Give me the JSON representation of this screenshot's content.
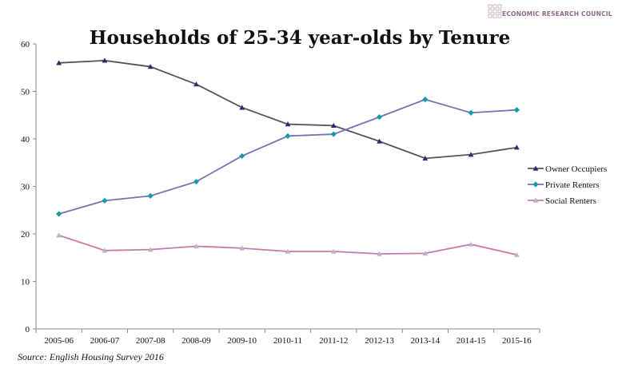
{
  "logo": {
    "text": "ECONOMIC RESEARCH COUNCIL"
  },
  "source": "Source: English Housing Survey 2016",
  "chart_data": {
    "type": "line",
    "title": "Households of 25-34 year-olds by Tenure",
    "xlabel": "",
    "ylabel": "",
    "ylim": [
      0,
      60
    ],
    "yticks": [
      0,
      10,
      20,
      30,
      40,
      50,
      60
    ],
    "grid": false,
    "legend": "right",
    "categories": [
      "2005-06",
      "2006-07",
      "2007-08",
      "2008-09",
      "2009-10",
      "2010-11",
      "2011-12",
      "2012-13",
      "2013-14",
      "2014-15",
      "2015-16"
    ],
    "series": [
      {
        "name": "Owner Occupiers",
        "color": "#555555",
        "marker": "triangle",
        "marker_color": "#2e2a6e",
        "values": [
          56.0,
          56.5,
          55.2,
          51.5,
          46.6,
          43.1,
          42.8,
          39.5,
          35.9,
          36.7,
          38.2
        ]
      },
      {
        "name": "Private Renters",
        "color": "#7373b8",
        "marker": "diamond",
        "marker_color": "#1a9a9e",
        "values": [
          24.2,
          27.0,
          28.0,
          31.0,
          36.4,
          40.6,
          41.0,
          44.6,
          48.3,
          45.5,
          46.1
        ]
      },
      {
        "name": "Social Renters",
        "color": "#cc77aa",
        "marker": "triangle",
        "marker_color": "#b8b8b8",
        "values": [
          19.7,
          16.5,
          16.7,
          17.4,
          17.0,
          16.3,
          16.3,
          15.8,
          15.9,
          17.8,
          15.6
        ]
      }
    ]
  }
}
